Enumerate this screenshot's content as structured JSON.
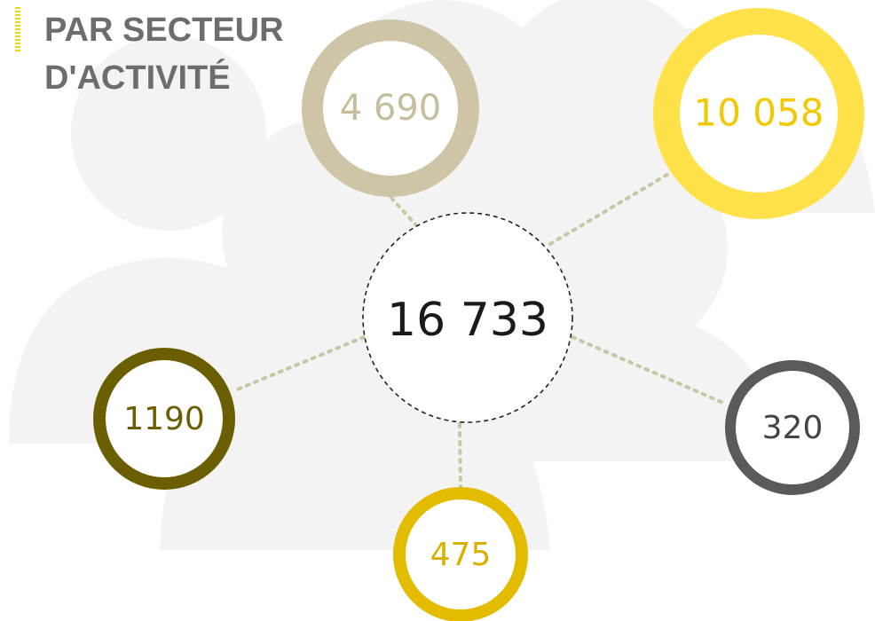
{
  "header": {
    "title_lines": [
      "PAR SECTEUR",
      "D'ACTIVITÉ"
    ]
  },
  "center": {
    "label": "16 733"
  },
  "nodes": [
    {
      "label": "4 690"
    },
    {
      "label": "10 058"
    },
    {
      "label": "1190"
    },
    {
      "label": "475"
    },
    {
      "label": "320"
    }
  ]
}
